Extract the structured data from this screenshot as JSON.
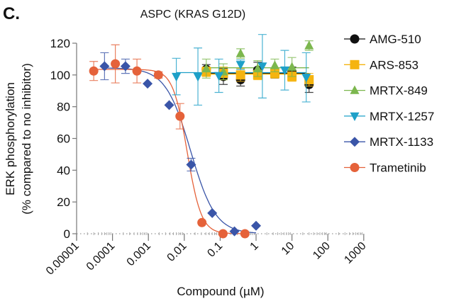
{
  "panel_label": "C.",
  "chart_data": {
    "type": "scatter",
    "title": "ASPC (KRAS G12D)",
    "xlabel": "Compound (µM)",
    "ylabel_line1": "ERK phosphorylation",
    "ylabel_line2": "(% compared to no inhibitor)",
    "xscale": "log",
    "xlim": [
      1e-05,
      1000
    ],
    "ylim": [
      0,
      120
    ],
    "xticks": [
      "0.00001",
      "0.0001",
      "0.001",
      "0.01",
      "0.1",
      "1",
      "10",
      "100",
      "1000"
    ],
    "xtick_values": [
      1e-05,
      0.0001,
      0.001,
      0.01,
      0.1,
      1,
      10,
      100,
      1000
    ],
    "yticks": [
      0,
      20,
      40,
      60,
      80,
      100,
      120
    ],
    "grid": false,
    "legend_placement": "right",
    "series": [
      {
        "name": "AMG-510",
        "color": "#111111",
        "marker": "circle",
        "x": [
          0.041,
          0.123,
          0.37,
          1.11,
          3.33,
          10,
          30
        ],
        "y": [
          103.5,
          99,
          97,
          103,
          101,
          102,
          94
        ],
        "err": [
          3,
          5,
          4,
          5,
          3,
          3,
          5
        ],
        "fit": {
          "top": 101,
          "bottom": 101,
          "ic50": 1,
          "hill": 1
        }
      },
      {
        "name": "ARS-853",
        "color": "#f5b40f",
        "marker": "square",
        "x": [
          0.041,
          0.123,
          0.37,
          1.11,
          3.33,
          10,
          30
        ],
        "y": [
          102,
          101,
          100,
          100,
          101,
          99,
          97
        ],
        "err": [
          3,
          4,
          4,
          3,
          3,
          3,
          4
        ],
        "fit": {
          "top": 100.5,
          "bottom": 100.5,
          "ic50": 1,
          "hill": 1
        }
      },
      {
        "name": "MRTX-849",
        "color": "#7cb74e",
        "marker": "triangle-up",
        "x": [
          0.041,
          0.123,
          0.37,
          1.11,
          3.33,
          10,
          30
        ],
        "y": [
          104,
          102,
          113.5,
          104,
          106,
          105,
          118.5
        ],
        "err": [
          6,
          5,
          3,
          5,
          4,
          6,
          3
        ],
        "fit": {
          "top": 104.5,
          "bottom": 104.5,
          "ic50": 1,
          "hill": 1
        }
      },
      {
        "name": "MRTX-1257",
        "color": "#1ea0c8",
        "marker": "triangle-down",
        "x": [
          0.006,
          0.024,
          0.092,
          0.37,
          1.5,
          6.3,
          25
        ],
        "y": [
          99,
          99,
          99.5,
          106.5,
          105.5,
          103,
          98.5
        ],
        "err": [
          11.5,
          18,
          10.5,
          3,
          20,
          12.5,
          15.5
        ],
        "fit": {
          "top": 101.5,
          "bottom": 101.5,
          "ic50": 1,
          "hill": 1
        }
      },
      {
        "name": "MRTX-1133",
        "color": "#3a55a8",
        "marker": "diamond",
        "x": [
          6e-05,
          0.00023,
          0.00095,
          0.0038,
          0.0155,
          0.06,
          0.25,
          1.0
        ],
        "y": [
          105.5,
          105.5,
          94.5,
          81,
          43.5,
          13,
          1.5,
          5
        ],
        "err": [
          8.5,
          4.5,
          0,
          0,
          4,
          0,
          0,
          0
        ],
        "fit": {
          "top": 104.5,
          "bottom": 0,
          "ic50": 0.015,
          "hill": 1.25
        }
      },
      {
        "name": "Trametinib",
        "color": "#e5623a",
        "marker": "circle",
        "x": [
          3e-05,
          0.00012,
          0.00048,
          0.0019,
          0.0076,
          0.031,
          0.12,
          0.49
        ],
        "y": [
          102.5,
          107,
          102.5,
          100,
          74,
          7,
          0,
          0
        ],
        "err": [
          6,
          12,
          7.5,
          2,
          8,
          0,
          0,
          0
        ],
        "fit": {
          "top": 103.5,
          "bottom": 0,
          "ic50": 0.012,
          "hill": 2.2
        }
      }
    ]
  }
}
